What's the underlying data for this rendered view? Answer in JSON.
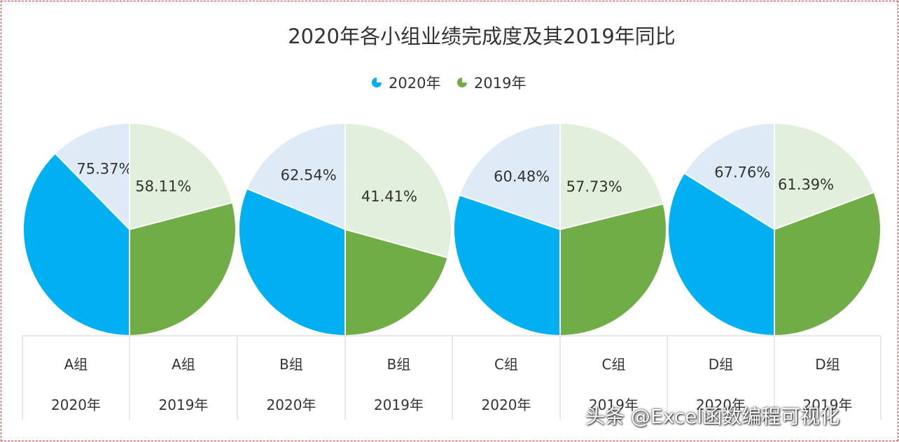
{
  "chart_data": {
    "type": "pie",
    "title": "2020年各小组业绩完成度及其2019年同比",
    "legend": {
      "position": "top-center",
      "entries": [
        {
          "label": "2020年",
          "color": "#00B0F0"
        },
        {
          "label": "2019年",
          "color": "#70AD47"
        }
      ]
    },
    "colors": {
      "2020年": {
        "filled": "#00B0F0",
        "remainder": "#DEEBF7"
      },
      "2019年": {
        "filled": "#70AD47",
        "remainder": "#E2EFDA"
      }
    },
    "groups": [
      {
        "group": "A组",
        "series": [
          {
            "year": "2020年",
            "value": 75.37,
            "label": "75.37%"
          },
          {
            "year": "2019年",
            "value": 58.11,
            "label": "58.11%"
          }
        ]
      },
      {
        "group": "B组",
        "series": [
          {
            "year": "2020年",
            "value": 62.54,
            "label": "62.54%"
          },
          {
            "year": "2019年",
            "value": 41.41,
            "label": "41.41%"
          }
        ]
      },
      {
        "group": "C组",
        "series": [
          {
            "year": "2020年",
            "value": 60.48,
            "label": "60.48%"
          },
          {
            "year": "2019年",
            "value": 57.73,
            "label": "57.73%"
          }
        ]
      },
      {
        "group": "D组",
        "series": [
          {
            "year": "2020年",
            "value": 67.76,
            "label": "67.76%"
          },
          {
            "year": "2019年",
            "value": 61.39,
            "label": "61.39%"
          }
        ]
      }
    ]
  },
  "watermark": "头条 @Excel函数编程可视化"
}
